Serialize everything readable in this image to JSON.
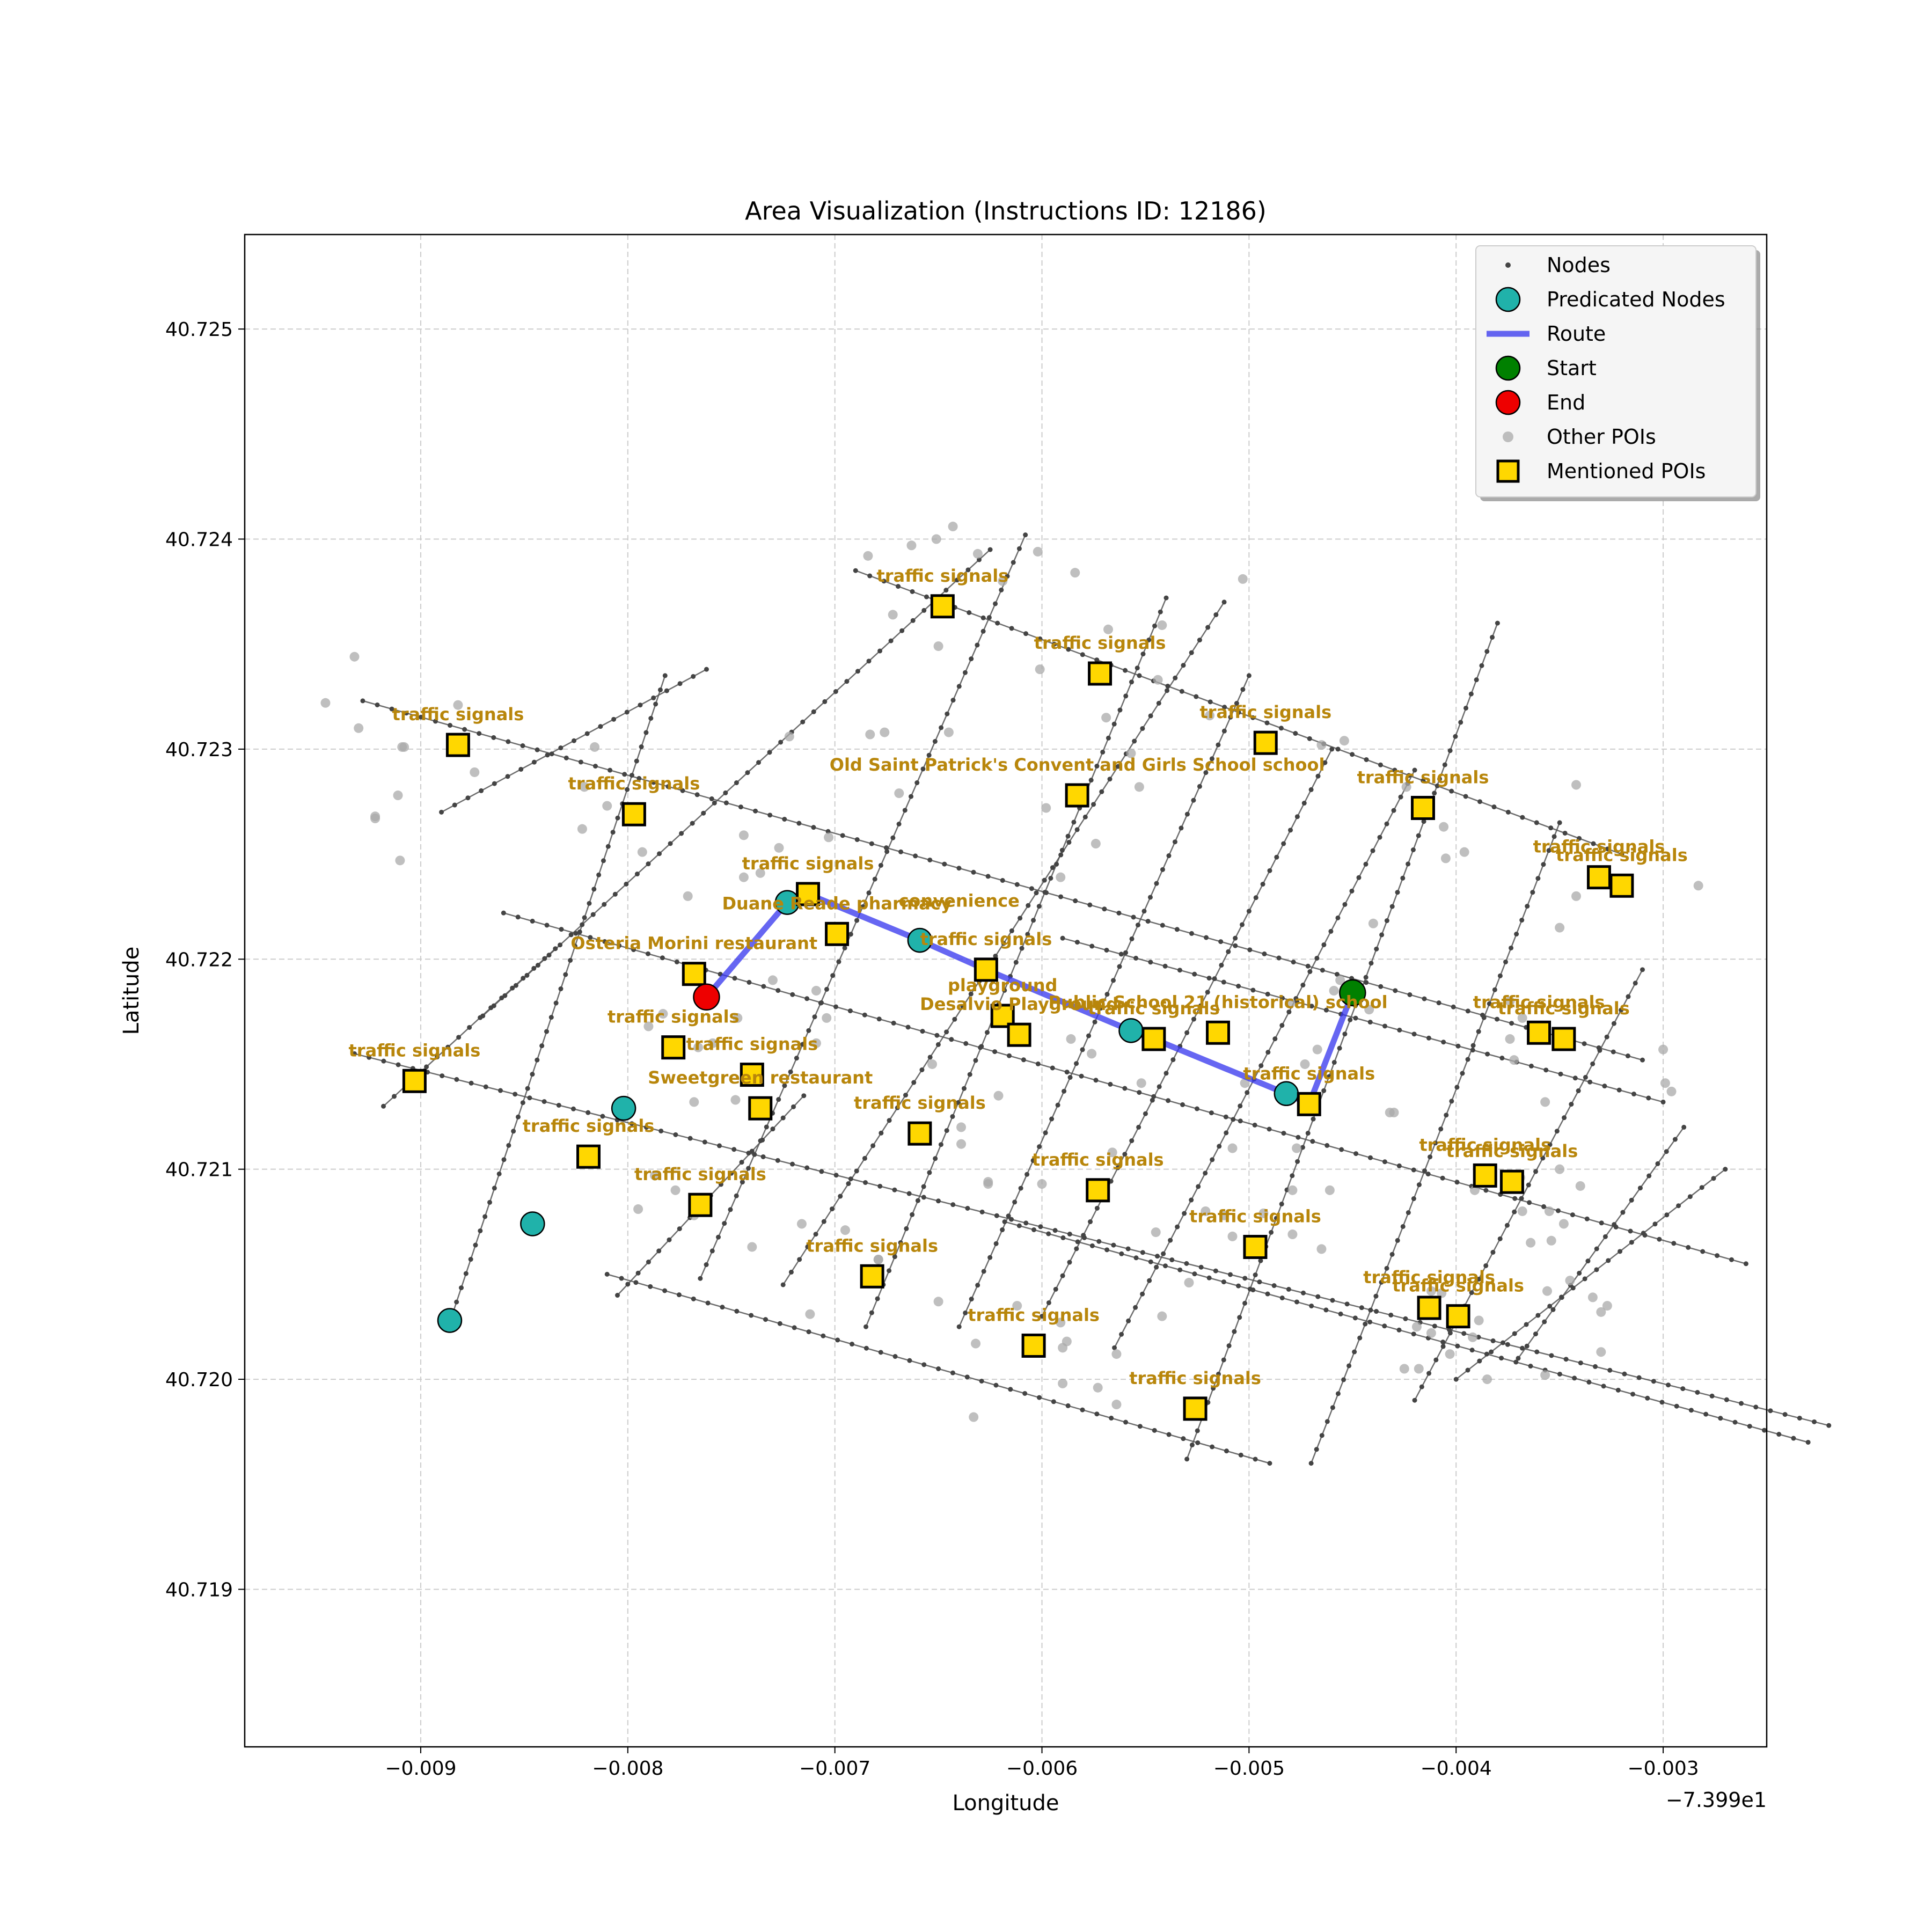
{
  "chart_data": {
    "type": "scatter",
    "title": "Area Visualization (Instructions ID: 12186)",
    "xlabel": "Longitude",
    "ylabel": "Latitude",
    "x_offset_label": "−7.399e1",
    "xlim": [
      -0.00985,
      -0.0025
    ],
    "ylim": [
      40.71825,
      40.72545
    ],
    "x_ticks": [
      -0.009,
      -0.008,
      -0.007,
      -0.006,
      -0.005,
      -0.004,
      -0.003
    ],
    "x_tick_labels": [
      "−0.009",
      "−0.008",
      "−0.007",
      "−0.006",
      "−0.005",
      "−0.004",
      "−0.003"
    ],
    "y_ticks": [
      40.719,
      40.72,
      40.721,
      40.722,
      40.723,
      40.724,
      40.725
    ],
    "y_tick_labels": [
      "40.719",
      "40.720",
      "40.721",
      "40.722",
      "40.723",
      "40.724",
      "40.725"
    ],
    "grid": true,
    "legend_position": "upper-right",
    "legend": [
      {
        "label": "Nodes",
        "kind": "node"
      },
      {
        "label": "Predicated Nodes",
        "kind": "predicated"
      },
      {
        "label": "Route",
        "kind": "route"
      },
      {
        "label": "Start",
        "kind": "start"
      },
      {
        "label": "End",
        "kind": "end"
      },
      {
        "label": "Other POIs",
        "kind": "other"
      },
      {
        "label": "Mentioned POIs",
        "kind": "mentioned"
      }
    ],
    "colors": {
      "node": "#444444",
      "edge": "#555555",
      "predicated": "#20b2aa",
      "route": "#3333ee",
      "start": "#008000",
      "end": "#ee0000",
      "other": "#a9a9a9",
      "mentioned": "#ffd700",
      "poi_text": "#b8860b",
      "grid": "#cccccc"
    },
    "streets": [
      [
        [
          -0.00928,
          40.72323
        ],
        [
          -0.0031,
          40.72152
        ]
      ],
      [
        [
          -0.00932,
          40.72155
        ],
        [
          -0.0022,
          40.71978
        ]
      ],
      [
        [
          -0.0086,
          40.72222
        ],
        [
          -0.0026,
          40.72055
        ]
      ],
      [
        [
          -0.0081,
          40.7205
        ],
        [
          -0.0049,
          40.7196
        ]
      ],
      [
        [
          -0.0059,
          40.7221
        ],
        [
          -0.003,
          40.72132
        ]
      ],
      [
        [
          -0.0069,
          40.72385
        ],
        [
          -0.0032,
          40.7225
        ]
      ],
      [
        [
          -0.00618,
          40.72075
        ],
        [
          -0.0023,
          40.7197
        ]
      ],
      [
        [
          -0.00885,
          40.7203
        ],
        [
          -0.00782,
          40.72335
        ]
      ],
      [
        [
          -0.00918,
          40.7213
        ],
        [
          -0.00835,
          40.72205
        ]
      ],
      [
        [
          -0.0087,
          40.72173
        ],
        [
          -0.00625,
          40.72395
        ]
      ],
      [
        [
          -0.0089,
          40.7227
        ],
        [
          -0.00762,
          40.72338
        ]
      ],
      [
        [
          -0.00805,
          40.7204
        ],
        [
          -0.00715,
          40.72135
        ]
      ],
      [
        [
          -0.00765,
          40.72048
        ],
        [
          -0.00608,
          40.72402
        ]
      ],
      [
        [
          -0.00725,
          40.72045
        ],
        [
          -0.00512,
          40.7237
        ]
      ],
      [
        [
          -0.00685,
          40.72025
        ],
        [
          -0.0054,
          40.72372
        ]
      ],
      [
        [
          -0.0064,
          40.72025
        ],
        [
          -0.005,
          40.72335
        ]
      ],
      [
        [
          -0.006,
          40.7203
        ],
        [
          -0.0046,
          40.723
        ]
      ],
      [
        [
          -0.00565,
          40.72015
        ],
        [
          -0.0042,
          40.7229
        ]
      ],
      [
        [
          -0.0053,
          40.71962
        ],
        [
          -0.0038,
          40.7236
        ]
      ],
      [
        [
          -0.0047,
          40.7196
        ],
        [
          -0.0035,
          40.72265
        ]
      ],
      [
        [
          -0.0042,
          40.7199
        ],
        [
          -0.0031,
          40.72195
        ]
      ],
      [
        [
          -0.004,
          40.72
        ],
        [
          -0.0027,
          40.721
        ]
      ],
      [
        [
          -0.0037,
          40.7201
        ],
        [
          -0.0029,
          40.7212
        ]
      ]
    ],
    "predicated_nodes": [
      {
        "x": -0.00886,
        "y": 40.72028
      },
      {
        "x": -0.00846,
        "y": 40.72074
      },
      {
        "x": -0.00802,
        "y": 40.72129
      },
      {
        "x": -0.00723,
        "y": 40.72227
      },
      {
        "x": -0.00659,
        "y": 40.72209
      },
      {
        "x": -0.00557,
        "y": 40.72166
      },
      {
        "x": -0.00482,
        "y": 40.72136
      }
    ],
    "route": [
      {
        "x": -0.0045,
        "y": 40.72184
      },
      {
        "x": -0.00471,
        "y": 40.72131
      },
      {
        "x": -0.00482,
        "y": 40.72136
      },
      {
        "x": -0.00546,
        "y": 40.72162
      },
      {
        "x": -0.00557,
        "y": 40.72166
      },
      {
        "x": -0.00627,
        "y": 40.72195
      },
      {
        "x": -0.00659,
        "y": 40.72209
      },
      {
        "x": -0.00713,
        "y": 40.72231
      },
      {
        "x": -0.00723,
        "y": 40.72227
      },
      {
        "x": -0.00762,
        "y": 40.72182
      }
    ],
    "start": {
      "x": -0.0045,
      "y": 40.72184
    },
    "end": {
      "x": -0.00762,
      "y": 40.72182
    },
    "other_pois": [
      [
        -0.00932,
        40.72344
      ],
      [
        -0.00946,
        40.72322
      ],
      [
        -0.0093,
        40.7231
      ],
      [
        -0.00909,
        40.72301
      ],
      [
        -0.00908,
        40.72301
      ],
      [
        -0.00922,
        40.72267
      ],
      [
        -0.00922,
        40.72268
      ],
      [
        -0.00911,
        40.72278
      ],
      [
        -0.0091,
        40.72247
      ],
      [
        -0.00882,
        40.72321
      ],
      [
        -0.00874,
        40.72289
      ],
      [
        -0.00816,
        40.72301
      ],
      [
        -0.00821,
        40.72282
      ],
      [
        -0.00822,
        40.72262
      ],
      [
        -0.0081,
        40.72273
      ],
      [
        -0.00793,
        40.72251
      ],
      [
        -0.00684,
        40.72392
      ],
      [
        -0.00672,
        40.72364
      ],
      [
        -0.00663,
        40.72397
      ],
      [
        -0.00651,
        40.724
      ],
      [
        -0.00643,
        40.72406
      ],
      [
        -0.00631,
        40.72393
      ],
      [
        -0.00619,
        40.7238
      ],
      [
        -0.00602,
        40.72394
      ],
      [
        -0.00584,
        40.72384
      ],
      [
        -0.00568,
        40.72357
      ],
      [
        -0.00544,
        40.72333
      ],
      [
        -0.0065,
        40.72349
      ],
      [
        -0.00601,
        40.72338
      ],
      [
        -0.00542,
        40.72359
      ],
      [
        -0.00503,
        40.72381
      ],
      [
        -0.00569,
        40.72315
      ],
      [
        -0.00519,
        40.72316
      ],
      [
        -0.00465,
        40.72302
      ],
      [
        -0.00553,
        40.72282
      ],
      [
        -0.00557,
        40.72298
      ],
      [
        -0.00598,
        40.72272
      ],
      [
        -0.00574,
        40.72255
      ],
      [
        -0.00591,
        40.72239
      ],
      [
        -0.00676,
        40.72308
      ],
      [
        -0.00669,
        40.72279
      ],
      [
        -0.00722,
        40.72306
      ],
      [
        -0.00744,
        40.72259
      ],
      [
        -0.00717,
        40.7223
      ],
      [
        -0.00683,
        40.72307
      ],
      [
        -0.00645,
        40.72308
      ],
      [
        -0.00703,
        40.72258
      ],
      [
        -0.00727,
        40.72253
      ],
      [
        -0.00736,
        40.72241
      ],
      [
        -0.00771,
        40.7223
      ],
      [
        -0.00744,
        40.72239
      ],
      [
        -0.00699,
        40.7221
      ],
      [
        -0.00699,
        40.7221
      ],
      [
        -0.0073,
        40.7219
      ],
      [
        -0.00783,
        40.72174
      ],
      [
        -0.0079,
        40.72168
      ],
      [
        -0.00766,
        40.72158
      ],
      [
        -0.00747,
        40.72172
      ],
      [
        -0.00759,
        40.7216
      ],
      [
        -0.00748,
        40.72133
      ],
      [
        -0.00709,
        40.72185
      ],
      [
        -0.00704,
        40.72172
      ],
      [
        -0.00709,
        40.7216
      ],
      [
        -0.00653,
        40.7215
      ],
      [
        -0.00621,
        40.72135
      ],
      [
        -0.00639,
        40.72112
      ],
      [
        -0.00586,
        40.72162
      ],
      [
        -0.00552,
        40.72141
      ],
      [
        -0.00576,
        40.72155
      ],
      [
        -0.00566,
        40.72108
      ],
      [
        -0.00502,
        40.72141
      ],
      [
        -0.00467,
        40.72157
      ],
      [
        -0.00459,
        40.72185
      ],
      [
        -0.00473,
        40.7215
      ],
      [
        -0.00442,
        40.72176
      ],
      [
        -0.00432,
        40.72127
      ],
      [
        -0.00461,
        40.7209
      ],
      [
        -0.00479,
        40.72069
      ],
      [
        -0.00465,
        40.72062
      ],
      [
        -0.00508,
        40.72068
      ],
      [
        -0.00512,
        40.72078
      ],
      [
        -0.00493,
        40.72079
      ],
      [
        -0.00521,
        40.7208
      ],
      [
        -0.00545,
        40.7207
      ],
      [
        -0.00529,
        40.72046
      ],
      [
        -0.00542,
        40.7203
      ],
      [
        -0.00564,
        40.72012
      ],
      [
        -0.00588,
        40.72018
      ],
      [
        -0.0059,
        40.72015
      ],
      [
        -0.00564,
        40.71988
      ],
      [
        -0.00573,
        40.71996
      ],
      [
        -0.0059,
        40.71998
      ],
      [
        -0.00633,
        40.71982
      ],
      [
        -0.00632,
        40.72017
      ],
      [
        -0.00612,
        40.72035
      ],
      [
        -0.00591,
        40.72027
      ],
      [
        -0.0065,
        40.72037
      ],
      [
        -0.00679,
        40.72057
      ],
      [
        -0.00695,
        40.72071
      ],
      [
        -0.00712,
        40.72031
      ],
      [
        -0.0074,
        40.72063
      ],
      [
        -0.00768,
        40.72078
      ],
      [
        -0.00777,
        40.7209
      ],
      [
        -0.00716,
        40.72074
      ],
      [
        -0.00795,
        40.72081
      ],
      [
        -0.00787,
        40.72097
      ],
      [
        -0.00768,
        40.72132
      ],
      [
        -0.00679,
        40.72057
      ],
      [
        -0.00626,
        40.72094
      ],
      [
        -0.00626,
        40.72093
      ],
      [
        -0.00639,
        40.7212
      ],
      [
        -0.006,
        40.72093
      ],
      [
        -0.00508,
        40.7211
      ],
      [
        -0.00483,
        40.72136
      ],
      [
        -0.0043,
        40.72127
      ],
      [
        -0.00374,
        40.7218
      ],
      [
        -0.00368,
        40.72172
      ],
      [
        -0.00374,
        40.72162
      ],
      [
        -0.00372,
        40.72152
      ],
      [
        -0.00357,
        40.72132
      ],
      [
        -0.00369,
        40.72096
      ],
      [
        -0.00391,
        40.7209
      ],
      [
        -0.00355,
        40.7208
      ],
      [
        -0.0034,
        40.72092
      ],
      [
        -0.0035,
        40.721
      ],
      [
        -0.00368,
        40.7208
      ],
      [
        -0.00364,
        40.72065
      ],
      [
        -0.00356,
        40.72042
      ],
      [
        -0.00345,
        40.72047
      ],
      [
        -0.00334,
        40.72039
      ],
      [
        -0.0033,
        40.72032
      ],
      [
        -0.00327,
        40.72035
      ],
      [
        -0.0033,
        40.72013
      ],
      [
        -0.00357,
        40.72002
      ],
      [
        -0.00385,
        40.72
      ],
      [
        -0.00392,
        40.7202
      ],
      [
        -0.00412,
        40.72022
      ],
      [
        -0.00407,
        40.72041
      ],
      [
        -0.00419,
        40.72025
      ],
      [
        -0.00425,
        40.72005
      ],
      [
        -0.00342,
        40.7223
      ],
      [
        -0.00342,
        40.72283
      ],
      [
        -0.0035,
        40.72215
      ],
      [
        -0.00424,
        40.72282
      ],
      [
        -0.00405,
        40.72248
      ],
      [
        -0.00396,
        40.72251
      ],
      [
        -0.00406,
        40.72263
      ],
      [
        -0.00454,
        40.72304
      ],
      [
        -0.0044,
        40.72217
      ],
      [
        -0.0048,
        40.72179
      ],
      [
        -0.00456,
        40.7219
      ],
      [
        -0.00477,
        40.7211
      ],
      [
        -0.00479,
        40.7209
      ],
      [
        -0.00299,
        40.72141
      ],
      [
        -0.00283,
        40.72235
      ],
      [
        -0.00296,
        40.72137
      ],
      [
        -0.003,
        40.72157
      ],
      [
        -0.00412,
        40.72042
      ],
      [
        -0.004,
        40.7203
      ],
      [
        -0.00403,
        40.72012
      ],
      [
        -0.00418,
        40.72005
      ],
      [
        -0.00389,
        40.72028
      ],
      [
        -0.00354,
        40.72066
      ],
      [
        -0.00348,
        40.72074
      ]
    ],
    "mentioned_pois": [
      {
        "x": -0.00882,
        "y": 40.72302,
        "label": "traffic signals"
      },
      {
        "x": -0.00797,
        "y": 40.72269,
        "label": "traffic signals"
      },
      {
        "x": -0.00713,
        "y": 40.72231,
        "label": "traffic signals"
      },
      {
        "x": -0.00699,
        "y": 40.72212,
        "label": "Duane Reade pharmacy"
      },
      {
        "x": -0.00768,
        "y": 40.72193,
        "label": "Osteria Morini restaurant"
      },
      {
        "x": -0.00778,
        "y": 40.72158,
        "label": "traffic signals"
      },
      {
        "x": -0.00903,
        "y": 40.72142,
        "label": "traffic signals"
      },
      {
        "x": -0.0074,
        "y": 40.72145,
        "label": "traffic signals"
      },
      {
        "x": -0.00736,
        "y": 40.72129,
        "label": "Sweetgreen restaurant"
      },
      {
        "x": -0.00819,
        "y": 40.72106,
        "label": "traffic signals"
      },
      {
        "x": -0.00765,
        "y": 40.72083,
        "label": "traffic signals"
      },
      {
        "x": -0.00659,
        "y": 40.72117,
        "label": "traffic signals"
      },
      {
        "x": -0.00648,
        "y": 40.72368,
        "label": "traffic signals"
      },
      {
        "x": -0.00572,
        "y": 40.72336,
        "label": "traffic signals"
      },
      {
        "x": -0.00583,
        "y": 40.72278,
        "label": "Old Saint Patrick's Convent and Girls School school"
      },
      {
        "x": -0.00492,
        "y": 40.72303,
        "label": "traffic signals"
      },
      {
        "x": -0.00416,
        "y": 40.72272,
        "label": "traffic signals"
      },
      {
        "x": -0.00331,
        "y": 40.72239,
        "label": "traffic signals"
      },
      {
        "x": -0.0032,
        "y": 40.72235,
        "label": "traffic signals"
      },
      {
        "x": -0.00627,
        "y": 40.72195,
        "label": "traffic signals"
      },
      {
        "x": -0.00619,
        "y": 40.72173,
        "label": "playground"
      },
      {
        "x": -0.00611,
        "y": 40.72164,
        "label": "Desalvio Playground"
      },
      {
        "x": -0.00546,
        "y": 40.72162,
        "label": "traffic signals"
      },
      {
        "x": -0.00515,
        "y": 40.72165,
        "label": "Public School 21 (historical) school"
      },
      {
        "x": -0.00471,
        "y": 40.72131,
        "label": "traffic signals"
      },
      {
        "x": -0.0036,
        "y": 40.72165,
        "label": "traffic signals"
      },
      {
        "x": -0.00348,
        "y": 40.72162,
        "label": "traffic signals"
      },
      {
        "x": -0.00386,
        "y": 40.72097,
        "label": "traffic signals"
      },
      {
        "x": -0.00373,
        "y": 40.72094,
        "label": "traffic signals"
      },
      {
        "x": -0.00573,
        "y": 40.7209,
        "label": "traffic signals"
      },
      {
        "x": -0.00497,
        "y": 40.72063,
        "label": "traffic signals"
      },
      {
        "x": -0.00413,
        "y": 40.72034,
        "label": "traffic signals"
      },
      {
        "x": -0.00399,
        "y": 40.7203,
        "label": "traffic signals"
      },
      {
        "x": -0.00682,
        "y": 40.72049,
        "label": "traffic signals"
      },
      {
        "x": -0.00604,
        "y": 40.72016,
        "label": "traffic signals"
      },
      {
        "x": -0.00526,
        "y": 40.71986,
        "label": "traffic signals"
      }
    ],
    "extra_labels": [
      {
        "x": -0.0064,
        "y": 40.72225,
        "label": "convenience"
      }
    ]
  }
}
